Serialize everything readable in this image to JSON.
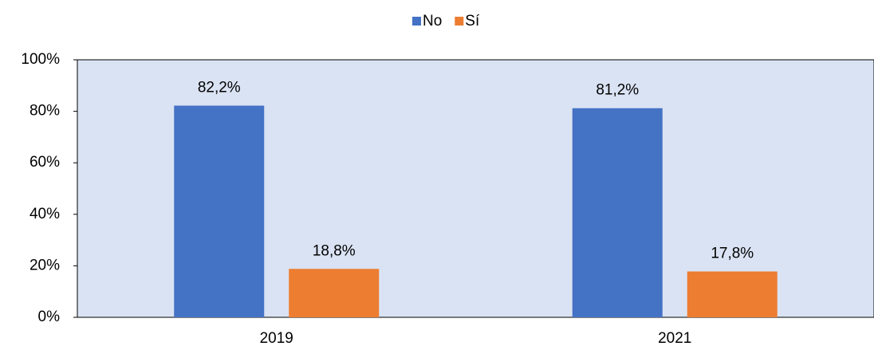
{
  "chart_data": {
    "type": "bar",
    "categories": [
      "2019",
      "2021"
    ],
    "series": [
      {
        "name": "No",
        "color": "#4472c4",
        "values": [
          82.2,
          81.2
        ],
        "value_labels": [
          "82,2%",
          "81,2%"
        ]
      },
      {
        "name": "Sí",
        "color": "#ed7d31",
        "values": [
          18.8,
          17.8
        ],
        "value_labels": [
          "18,8%",
          "17,8%"
        ]
      }
    ],
    "ylim": [
      0,
      100
    ],
    "yticks": [
      {
        "value": 0,
        "label": "0%"
      },
      {
        "value": 20,
        "label": "20%"
      },
      {
        "value": 40,
        "label": "40%"
      },
      {
        "value": 60,
        "label": "60%"
      },
      {
        "value": 80,
        "label": "80%"
      },
      {
        "value": 100,
        "label": "100%"
      }
    ],
    "legend": "top",
    "plot_background": "#dae3f3"
  }
}
